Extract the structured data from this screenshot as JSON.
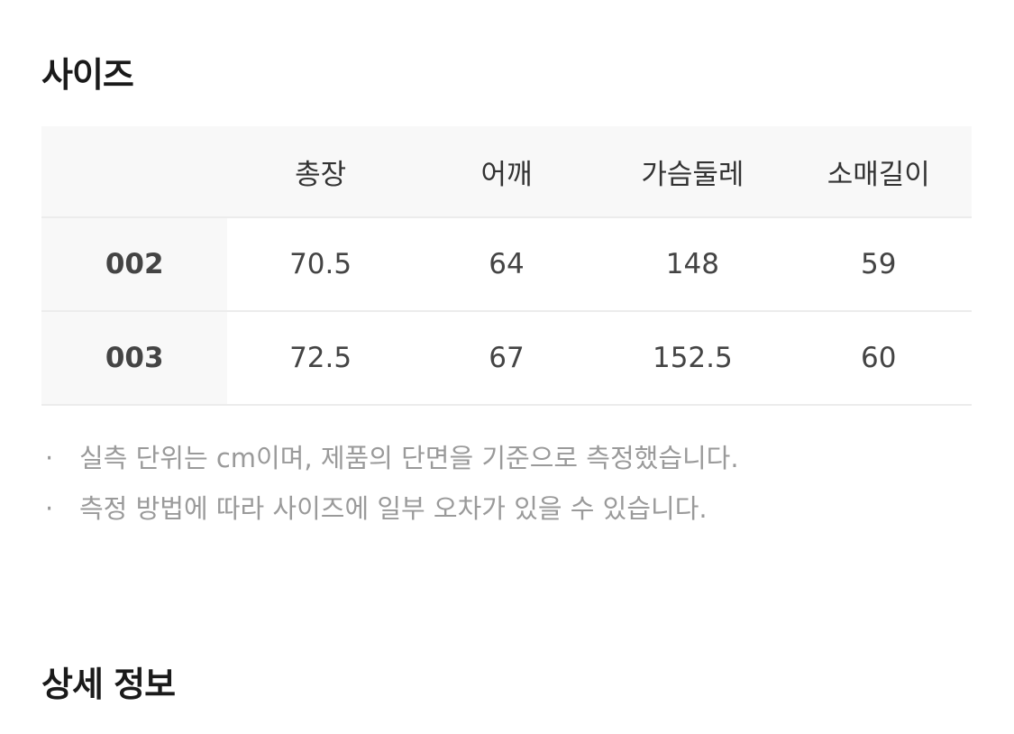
{
  "size_section": {
    "title": "사이즈",
    "columns": [
      "",
      "총장",
      "어깨",
      "가슴둘레",
      "소매길이"
    ],
    "rows": [
      {
        "size": "002",
        "values": [
          "70.5",
          "64",
          "148",
          "59"
        ]
      },
      {
        "size": "003",
        "values": [
          "72.5",
          "67",
          "152.5",
          "60"
        ]
      }
    ],
    "notes": [
      "실측 단위는 cm이며, 제품의 단면을 기준으로 측정했습니다.",
      "측정 방법에 따라 사이즈에 일부 오차가 있을 수 있습니다."
    ],
    "bullet": "·"
  },
  "detail_section": {
    "title": "상세 정보"
  }
}
